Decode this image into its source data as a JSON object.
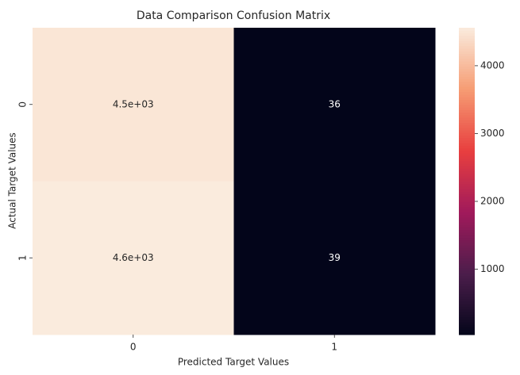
{
  "chart_data": {
    "type": "heatmap",
    "title": "Data Comparison Confusion Matrix",
    "xlabel": "Predicted Target Values",
    "ylabel": "Actual Target Values",
    "x_categories": [
      "0",
      "1"
    ],
    "y_categories": [
      "0",
      "1"
    ],
    "values": [
      [
        4500,
        36
      ],
      [
        4560,
        39
      ]
    ],
    "value_labels": [
      [
        "4.5e+03",
        "36"
      ],
      [
        "4.6e+03",
        "39"
      ]
    ],
    "clim": [
      36,
      4560
    ],
    "cticks": [
      1000,
      2000,
      3000,
      4000
    ],
    "colorscale": [
      "#03051a",
      "#4c1d4b",
      "#a11a5b",
      "#e83f3f",
      "#f69c73",
      "#faebdd"
    ]
  }
}
